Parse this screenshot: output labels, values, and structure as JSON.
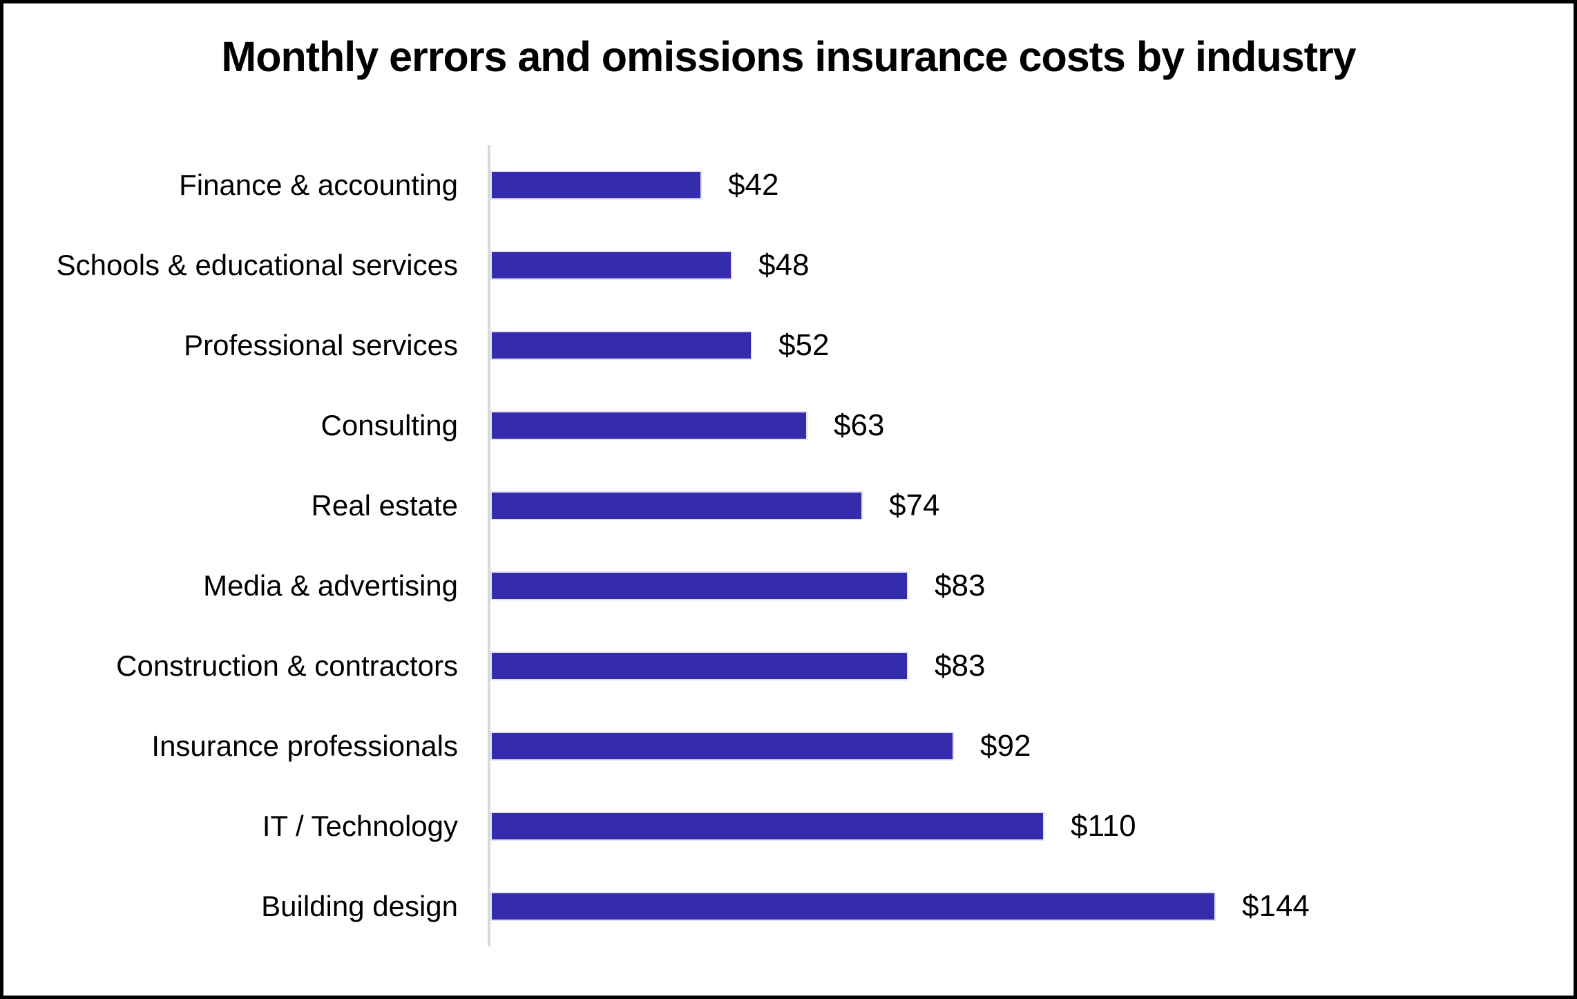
{
  "page": {
    "background": "#ffffff",
    "frame_border_color": "#000000"
  },
  "chart_data": {
    "type": "bar",
    "orientation": "horizontal",
    "title": "Monthly errors and omissions insurance costs by industry",
    "categories": [
      "Finance & accounting",
      "Schools & educational services",
      "Professional services",
      "Consulting",
      "Real estate",
      "Media & advertising",
      "Construction & contractors",
      "Insurance professionals",
      "IT / Technology",
      "Building design"
    ],
    "values": [
      42,
      48,
      52,
      63,
      74,
      83,
      83,
      92,
      110,
      144
    ],
    "data_labels": [
      "$42",
      "$48",
      "$52",
      "$63",
      "$74",
      "$83",
      "$83",
      "$92",
      "$110",
      "$144"
    ],
    "value_prefix": "$",
    "xlabel": "",
    "ylabel": "",
    "xlim": [
      0,
      160
    ],
    "grid": false,
    "legend": false,
    "bar_color": "#342cad",
    "axis_line_color": "#d9d9d9",
    "text_color": "#000000"
  }
}
